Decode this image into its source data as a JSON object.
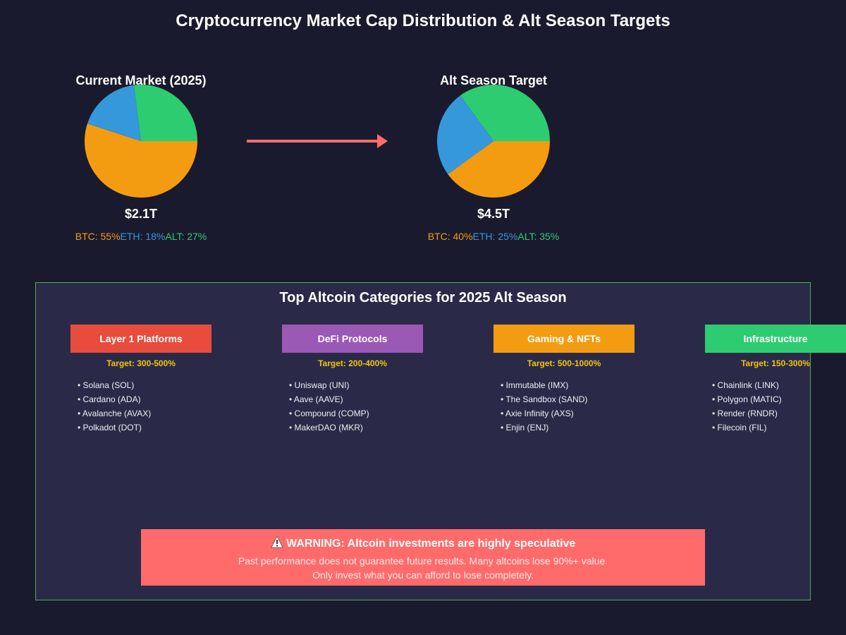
{
  "title": "Cryptocurrency Market Cap Distribution & Alt Season Targets",
  "colors": {
    "btc": "#f39c12",
    "eth": "#3498db",
    "alt": "#2ecc71",
    "arrow": "#ff6b6b"
  },
  "chart_data": [
    {
      "type": "pie",
      "title": "Current Market (2025)",
      "total": "$2.1T",
      "slices": [
        {
          "label": "BTC: 55%",
          "value": 55,
          "color": "#f39c12"
        },
        {
          "label": "ETH: 18%",
          "value": 18,
          "color": "#3498db"
        },
        {
          "label": "ALT: 27%",
          "value": 27,
          "color": "#2ecc71"
        }
      ]
    },
    {
      "type": "pie",
      "title": "Alt Season Target",
      "total": "$4.5T",
      "slices": [
        {
          "label": "BTC: 40%",
          "value": 40,
          "color": "#f39c12"
        },
        {
          "label": "ETH: 25%",
          "value": 25,
          "color": "#3498db"
        },
        {
          "label": "ALT: 35%",
          "value": 35,
          "color": "#2ecc71"
        }
      ]
    }
  ],
  "categories_section": {
    "title": "Top Altcoin Categories for 2025 Alt Season",
    "categories": [
      {
        "name": "Layer 1 Platforms",
        "color": "#e74c3c",
        "target": "Target: 300-500%",
        "items": [
          "• Solana (SOL)",
          "• Cardano (ADA)",
          "• Avalanche (AVAX)",
          "• Polkadot (DOT)"
        ]
      },
      {
        "name": "DeFi Protocols",
        "color": "#9b59b6",
        "target": "Target: 200-400%",
        "items": [
          "• Uniswap (UNI)",
          "• Aave (AAVE)",
          "• Compound (COMP)",
          "• MakerDAO (MKR)"
        ]
      },
      {
        "name": "Gaming & NFTs",
        "color": "#f39c12",
        "target": "Target: 500-1000%",
        "items": [
          "• Immutable (IMX)",
          "• The Sandbox (SAND)",
          "• Axie Infinity (AXS)",
          "• Enjin (ENJ)"
        ]
      },
      {
        "name": "Infrastructure",
        "color": "#2ecc71",
        "target": "Target: 150-300%",
        "items": [
          "• Chainlink (LINK)",
          "• Polygon (MATIC)",
          "• Render (RNDR)",
          "• Filecoin (FIL)"
        ]
      }
    ]
  },
  "warning": {
    "title": "WARNING: Altcoin investments are highly speculative",
    "line1": "Past performance does not guarantee future results. Many altcoins lose 90%+ value.",
    "line2": "Only invest what you can afford to lose completely.",
    "icon": "warning-triangle-icon"
  }
}
